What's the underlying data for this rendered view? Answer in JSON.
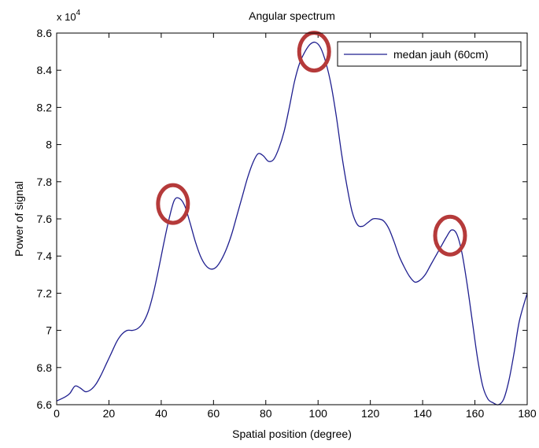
{
  "chart_data": {
    "type": "line",
    "title": "Angular spectrum",
    "xlabel": "Spatial position (degree)",
    "ylabel": "Power of signal",
    "y_exponent_label": "x 10",
    "y_exponent_power": "4",
    "xlim": [
      0,
      180
    ],
    "ylim": [
      6.6,
      8.6
    ],
    "xticks": [
      0,
      20,
      40,
      60,
      80,
      100,
      120,
      140,
      160,
      180
    ],
    "xtick_labels": [
      "0",
      "20",
      "40",
      "60",
      "80",
      "100",
      "120",
      "140",
      "160",
      "180"
    ],
    "yticks": [
      6.6,
      6.8,
      7.0,
      7.2,
      7.4,
      7.6,
      7.8,
      8.0,
      8.2,
      8.4,
      8.6
    ],
    "ytick_labels": [
      "6.6",
      "6.8",
      "7",
      "7.2",
      "7.4",
      "7.6",
      "7.8",
      "8",
      "8.2",
      "8.4",
      "8.6"
    ],
    "grid": false,
    "legend_position": "top-right",
    "series": [
      {
        "name": "medan jauh (60cm)",
        "color": "#1f1f8f",
        "x": [
          0,
          3,
          5,
          7,
          9,
          11,
          13,
          15,
          17,
          19,
          21,
          23,
          25,
          27,
          29,
          31,
          33,
          35,
          37,
          39,
          41,
          43,
          45,
          47,
          49,
          51,
          53,
          55,
          57,
          59,
          61,
          63,
          65,
          67,
          69,
          71,
          73,
          75,
          77,
          79,
          81,
          83,
          85,
          87,
          89,
          91,
          93,
          95,
          97,
          99,
          101,
          103,
          105,
          107,
          109,
          111,
          113,
          115,
          117,
          119,
          121,
          123,
          125,
          127,
          129,
          131,
          133,
          135,
          137,
          139,
          141,
          143,
          145,
          147,
          149,
          151,
          153,
          155,
          157,
          159,
          161,
          163,
          165,
          167,
          169,
          171,
          173,
          175,
          177,
          180
        ],
        "y": [
          6.62,
          6.64,
          6.66,
          6.7,
          6.69,
          6.67,
          6.68,
          6.71,
          6.76,
          6.82,
          6.88,
          6.94,
          6.98,
          7.0,
          7.0,
          7.01,
          7.04,
          7.1,
          7.2,
          7.33,
          7.47,
          7.6,
          7.7,
          7.71,
          7.67,
          7.58,
          7.48,
          7.4,
          7.35,
          7.33,
          7.34,
          7.38,
          7.44,
          7.52,
          7.62,
          7.72,
          7.82,
          7.9,
          7.95,
          7.94,
          7.91,
          7.92,
          7.98,
          8.07,
          8.2,
          8.34,
          8.44,
          8.5,
          8.54,
          8.55,
          8.52,
          8.44,
          8.32,
          8.15,
          7.95,
          7.78,
          7.64,
          7.57,
          7.56,
          7.58,
          7.6,
          7.6,
          7.59,
          7.55,
          7.48,
          7.4,
          7.34,
          7.29,
          7.26,
          7.27,
          7.3,
          7.35,
          7.4,
          7.45,
          7.5,
          7.54,
          7.52,
          7.42,
          7.25,
          7.05,
          6.85,
          6.7,
          6.63,
          6.61,
          6.6,
          6.63,
          6.73,
          6.88,
          7.05,
          7.2
        ]
      }
    ],
    "annotations": [
      {
        "type": "circle",
        "x": 44.5,
        "y": 7.68,
        "color": "#b53a3a"
      },
      {
        "type": "circle",
        "x": 98.5,
        "y": 8.5,
        "color": "#b53a3a"
      },
      {
        "type": "circle",
        "x": 150.5,
        "y": 7.51,
        "color": "#b53a3a"
      }
    ]
  }
}
